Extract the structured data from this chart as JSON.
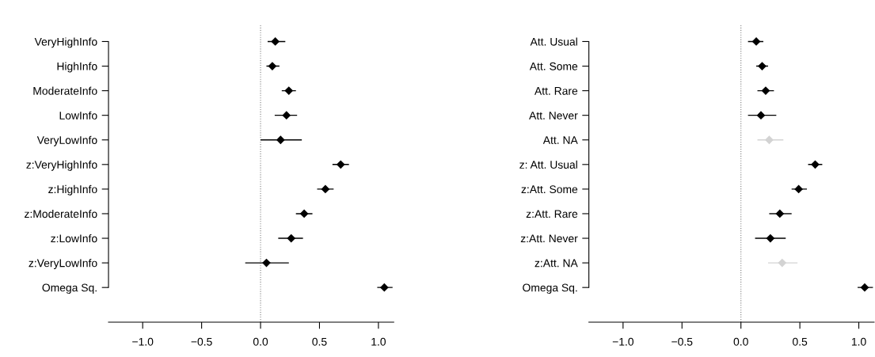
{
  "chart_data": [
    {
      "type": "scatter",
      "orientation": "horizontal",
      "marker": "diamond",
      "categories": [
        "VeryHighInfo",
        "HighInfo",
        "ModerateInfo",
        "LowInfo",
        "VeryLowInfo",
        "z:VeryHighInfo",
        "z:HighInfo",
        "z:ModerateInfo",
        "z:LowInfo",
        "z:VeryLowInfo",
        "Omega Sq."
      ],
      "values": [
        0.125,
        0.1,
        0.24,
        0.22,
        0.17,
        0.68,
        0.55,
        0.37,
        0.26,
        0.05,
        1.05
      ],
      "errors": [
        [
          0.06,
          0.21
        ],
        [
          0.05,
          0.16
        ],
        [
          0.18,
          0.3
        ],
        [
          0.12,
          0.31
        ],
        [
          0.0,
          0.35
        ],
        [
          0.61,
          0.75
        ],
        [
          0.48,
          0.62
        ],
        [
          0.3,
          0.44
        ],
        [
          0.15,
          0.36
        ],
        [
          -0.13,
          0.24
        ],
        [
          0.99,
          1.12
        ]
      ],
      "colors": [
        "#000000",
        "#000000",
        "#000000",
        "#000000",
        "#000000",
        "#000000",
        "#000000",
        "#000000",
        "#000000",
        "#000000",
        "#000000"
      ],
      "xlim": [
        -1.29,
        1.13
      ],
      "xticks": [
        {
          "value": -1,
          "label": "−1.0"
        },
        {
          "value": -0.5,
          "label": "−0.5"
        },
        {
          "value": 0,
          "label": "0.0"
        },
        {
          "value": 0.5,
          "label": "0.5"
        },
        {
          "value": 1,
          "label": "1.0"
        }
      ],
      "ref_lines": [
        {
          "axis": "x",
          "value": 0,
          "line_style": "dotted",
          "color": "#808080"
        }
      ],
      "grid": false,
      "legend": false
    },
    {
      "type": "scatter",
      "orientation": "horizontal",
      "marker": "diamond",
      "categories": [
        "Att. Usual",
        "Att. Some",
        "Att. Rare",
        "Att. Never",
        "Att. NA",
        "z: Att. Usual",
        "z:Att. Some",
        "z:Att. Rare",
        "z:Att. Never",
        "z:Att. NA",
        "Omega Sq."
      ],
      "values": [
        0.13,
        0.18,
        0.21,
        0.17,
        0.24,
        0.63,
        0.49,
        0.33,
        0.25,
        0.35,
        1.05
      ],
      "errors": [
        [
          0.06,
          0.19
        ],
        [
          0.13,
          0.23
        ],
        [
          0.14,
          0.28
        ],
        [
          0.06,
          0.3
        ],
        [
          0.14,
          0.36
        ],
        [
          0.57,
          0.69
        ],
        [
          0.43,
          0.56
        ],
        [
          0.24,
          0.43
        ],
        [
          0.12,
          0.38
        ],
        [
          0.23,
          0.48
        ],
        [
          0.99,
          1.12
        ]
      ],
      "colors": [
        "#000000",
        "#000000",
        "#000000",
        "#000000",
        "#d3d3d3",
        "#000000",
        "#000000",
        "#000000",
        "#000000",
        "#d3d3d3",
        "#000000"
      ],
      "xlim": [
        -1.29,
        1.13
      ],
      "xticks": [
        {
          "value": -1,
          "label": "−1.0"
        },
        {
          "value": -0.5,
          "label": "−0.5"
        },
        {
          "value": 0,
          "label": "0.0"
        },
        {
          "value": 0.5,
          "label": "0.5"
        },
        {
          "value": 1,
          "label": "1.0"
        }
      ],
      "ref_lines": [
        {
          "axis": "x",
          "value": 0,
          "line_style": "dotted",
          "color": "#808080"
        }
      ],
      "grid": false,
      "legend": false
    }
  ]
}
